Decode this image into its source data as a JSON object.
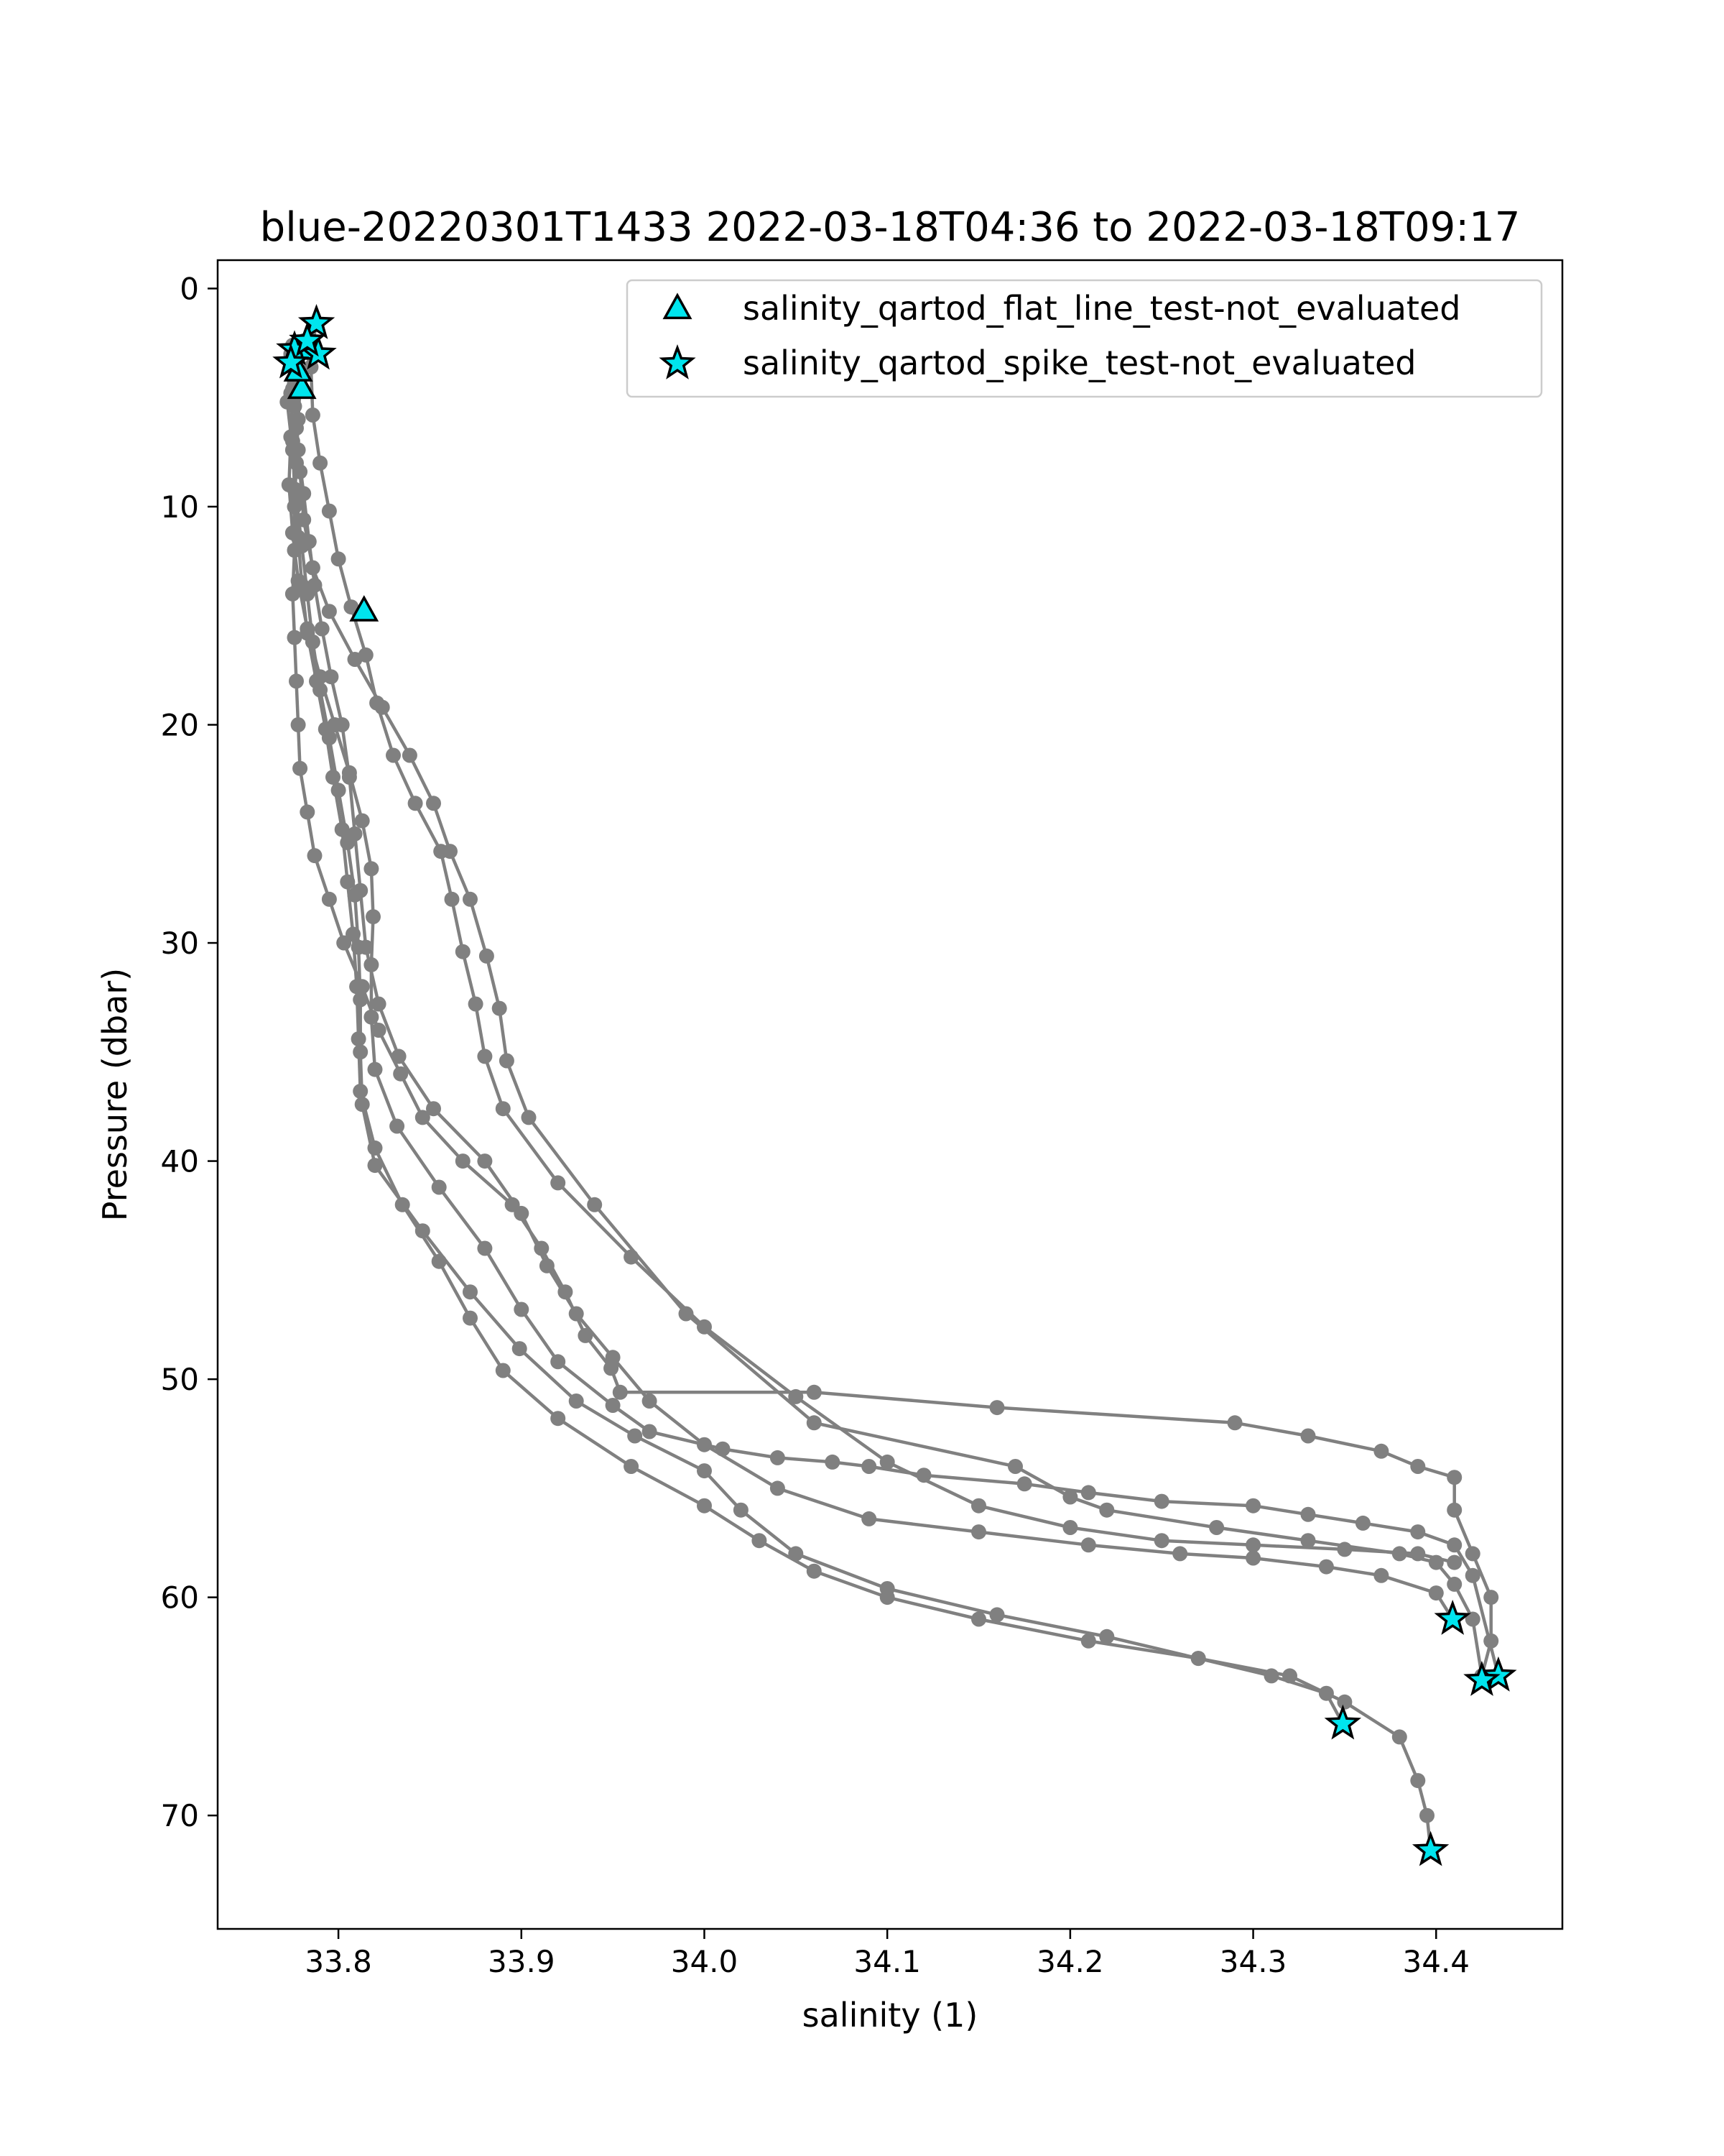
{
  "chart_data": {
    "type": "scatter",
    "title": "blue-20220301T1433 2022-03-18T04:36 to 2022-03-18T09:17",
    "xlabel": "salinity (1)",
    "ylabel": "Pressure (dbar)",
    "xlim": [
      33.734,
      34.469
    ],
    "ylim": [
      75.2,
      -1.3
    ],
    "y_inverted": true,
    "grid": false,
    "legend_position": "top-right",
    "xticks": [
      "33.8",
      "33.9",
      "34.0",
      "34.1",
      "34.2",
      "34.3",
      "34.4"
    ],
    "xtick_values": [
      33.8,
      33.9,
      34.0,
      34.1,
      34.2,
      34.3,
      34.4
    ],
    "yticks": [
      "0",
      "10",
      "20",
      "30",
      "40",
      "50",
      "60",
      "70"
    ],
    "ytick_values": [
      0,
      10,
      20,
      30,
      40,
      50,
      60,
      70
    ],
    "colors": {
      "profile_line": "#808080",
      "marker_fill": "#00e5ee",
      "marker_edge": "#000000",
      "legend_border": "#cccccc"
    },
    "profiles": [
      {
        "salinity": [
          33.788,
          33.785,
          33.779,
          33.778,
          33.777,
          33.776,
          33.776,
          33.775,
          33.776,
          33.777,
          33.778,
          33.779,
          33.783,
          33.787,
          33.795,
          33.803,
          33.813,
          33.822,
          33.834,
          33.846,
          33.868,
          33.895,
          33.911,
          33.924,
          33.935,
          33.949,
          33.954,
          34.06,
          34.16,
          34.29,
          34.33,
          34.37,
          34.39,
          34.41,
          34.41,
          34.42,
          34.43,
          34.43,
          34.425
        ],
        "pressure": [
          1.6,
          3.0,
          4.6,
          6.0,
          8.0,
          10.0,
          12.0,
          14.0,
          16.0,
          18.0,
          20.0,
          22.0,
          24.0,
          26.0,
          28.0,
          30.0,
          32.0,
          34.0,
          36.0,
          38.0,
          40.0,
          42.0,
          44.0,
          46.0,
          48.0,
          49.5,
          50.6,
          50.6,
          51.3,
          52.0,
          52.6,
          53.3,
          54.0,
          54.5,
          56.0,
          58.0,
          60.0,
          62.0,
          63.6
        ]
      },
      {
        "salinity": [
          33.776,
          33.775,
          33.777,
          33.779,
          33.781,
          33.786,
          33.795,
          33.809,
          33.824,
          33.839,
          33.852,
          33.861,
          33.872,
          33.881,
          33.888,
          33.892,
          33.904,
          33.94,
          33.99,
          34.06,
          34.17,
          34.2,
          34.22,
          34.28,
          34.33,
          34.38,
          34.4,
          34.41,
          34.42,
          34.425
        ],
        "pressure": [
          2.8,
          4.6,
          6.4,
          8.4,
          10.6,
          12.8,
          14.8,
          17.0,
          19.2,
          21.4,
          23.6,
          25.8,
          28.0,
          30.6,
          33.0,
          35.4,
          38.0,
          42.0,
          47.0,
          52.0,
          54.0,
          55.4,
          56.0,
          56.8,
          57.4,
          58.0,
          58.4,
          59.4,
          61.0,
          63.6
        ]
      },
      {
        "salinity": [
          33.777,
          33.776,
          33.778,
          33.781,
          33.784,
          33.787,
          33.791,
          33.796,
          33.802,
          33.806,
          33.809,
          33.812,
          33.815,
          33.822,
          33.833,
          33.852,
          33.88,
          33.9,
          33.914,
          33.93,
          33.95,
          33.97,
          34.0,
          34.04,
          34.09,
          34.15,
          34.21,
          34.26,
          34.3,
          34.34,
          34.37,
          34.4,
          34.409
        ],
        "pressure": [
          3.4,
          5.4,
          7.4,
          9.4,
          11.6,
          13.6,
          15.6,
          17.8,
          20.0,
          22.4,
          25.0,
          27.6,
          30.2,
          32.8,
          35.2,
          37.6,
          40.0,
          42.4,
          44.8,
          47.0,
          49.0,
          51.0,
          53.0,
          55.0,
          56.4,
          57.0,
          57.6,
          58.0,
          58.2,
          58.6,
          59.0,
          59.8,
          61.0
        ]
      },
      {
        "salinity": [
          33.774,
          33.772,
          33.775,
          33.777,
          33.78,
          33.783,
          33.786,
          33.79,
          33.795,
          33.8,
          33.805,
          33.809,
          33.811,
          33.812,
          33.812,
          33.813,
          33.82,
          33.846,
          33.872,
          33.899,
          33.93,
          33.962,
          34.0,
          34.02,
          34.05,
          34.1,
          34.16,
          34.22,
          34.27,
          34.31,
          34.34,
          34.349
        ],
        "pressure": [
          3.0,
          5.2,
          7.4,
          9.6,
          11.8,
          14.0,
          16.2,
          18.4,
          20.6,
          23.0,
          25.4,
          27.8,
          30.2,
          32.6,
          35.0,
          37.4,
          40.2,
          43.2,
          46.0,
          48.6,
          51.0,
          52.6,
          54.2,
          56.0,
          58.0,
          59.6,
          60.8,
          61.8,
          62.8,
          63.6,
          64.4,
          65.8
        ]
      },
      {
        "salinity": [
          33.775,
          33.774,
          33.775,
          33.776,
          33.778,
          33.78,
          33.783,
          33.788,
          33.793,
          33.797,
          33.802,
          33.805,
          33.808,
          33.81,
          33.811,
          33.812,
          33.82,
          33.835,
          33.855,
          33.872,
          33.89,
          33.92,
          33.96,
          34.0,
          34.03,
          34.06,
          34.1,
          34.15,
          34.21,
          34.27,
          34.32,
          34.35,
          34.38,
          34.39,
          34.395,
          34.397
        ],
        "pressure": [
          2.6,
          4.8,
          7.0,
          9.2,
          11.4,
          13.6,
          15.8,
          18.0,
          20.2,
          22.4,
          24.8,
          27.2,
          29.6,
          32.0,
          34.4,
          36.8,
          39.4,
          42.0,
          44.6,
          47.2,
          49.6,
          51.8,
          54.0,
          55.8,
          57.4,
          58.8,
          60.0,
          61.0,
          62.0,
          62.8,
          63.6,
          64.8,
          66.4,
          68.4,
          70.0,
          71.6
        ]
      },
      {
        "salinity": [
          33.781,
          33.779,
          33.774,
          33.773,
          33.775,
          33.778,
          33.783,
          33.79,
          33.798,
          33.806,
          33.813,
          33.818,
          33.819,
          33.818,
          33.818,
          33.82,
          33.832,
          33.855,
          33.88,
          33.9,
          33.92,
          33.95,
          33.97,
          34.01,
          34.04,
          34.07,
          34.09,
          34.12,
          34.175,
          34.21,
          34.25,
          34.3,
          34.33,
          34.36,
          34.39,
          34.41,
          34.42,
          34.434
        ],
        "pressure": [
          2.4,
          4.6,
          6.8,
          9.0,
          11.2,
          13.4,
          15.6,
          17.8,
          20.0,
          22.2,
          24.4,
          26.6,
          28.8,
          31.0,
          33.4,
          35.8,
          38.4,
          41.2,
          44.0,
          46.8,
          49.2,
          51.2,
          52.4,
          53.2,
          53.6,
          53.8,
          54.0,
          54.4,
          54.8,
          55.2,
          55.6,
          55.8,
          56.2,
          56.6,
          57.0,
          57.6,
          59.0,
          63.6
        ]
      },
      {
        "salinity": [
          33.785,
          33.786,
          33.79,
          33.795,
          33.8,
          33.807,
          33.815,
          33.821,
          33.83,
          33.842,
          33.856,
          33.862,
          33.868,
          33.875,
          33.88,
          33.89,
          33.92,
          33.96,
          34.0,
          34.05,
          34.1,
          34.15,
          34.2,
          34.25,
          34.3,
          34.35,
          34.39,
          34.41
        ],
        "pressure": [
          3.6,
          5.8,
          8.0,
          10.2,
          12.4,
          14.6,
          16.8,
          19.0,
          21.4,
          23.6,
          25.8,
          28.0,
          30.4,
          32.8,
          35.2,
          37.6,
          41.0,
          44.4,
          47.6,
          50.8,
          53.8,
          55.8,
          56.8,
          57.4,
          57.6,
          57.8,
          58.0,
          58.4
        ]
      }
    ],
    "markers": [
      {
        "name": "salinity_qartod_flat_line_test-not_evaluated",
        "shape": "triangle",
        "salinity": [
          33.78,
          33.814,
          33.778,
          33.783
        ],
        "pressure": [
          4.6,
          14.8,
          3.8,
          2.8
        ]
      },
      {
        "name": "salinity_qartod_spike_test-not_evaluated",
        "shape": "star",
        "salinity": [
          33.788,
          33.776,
          33.774,
          33.789,
          33.783,
          34.409,
          34.434,
          34.425,
          34.349,
          34.397
        ],
        "pressure": [
          1.6,
          2.8,
          3.4,
          3.0,
          2.4,
          61.0,
          63.6,
          63.8,
          65.8,
          71.6
        ]
      }
    ]
  }
}
